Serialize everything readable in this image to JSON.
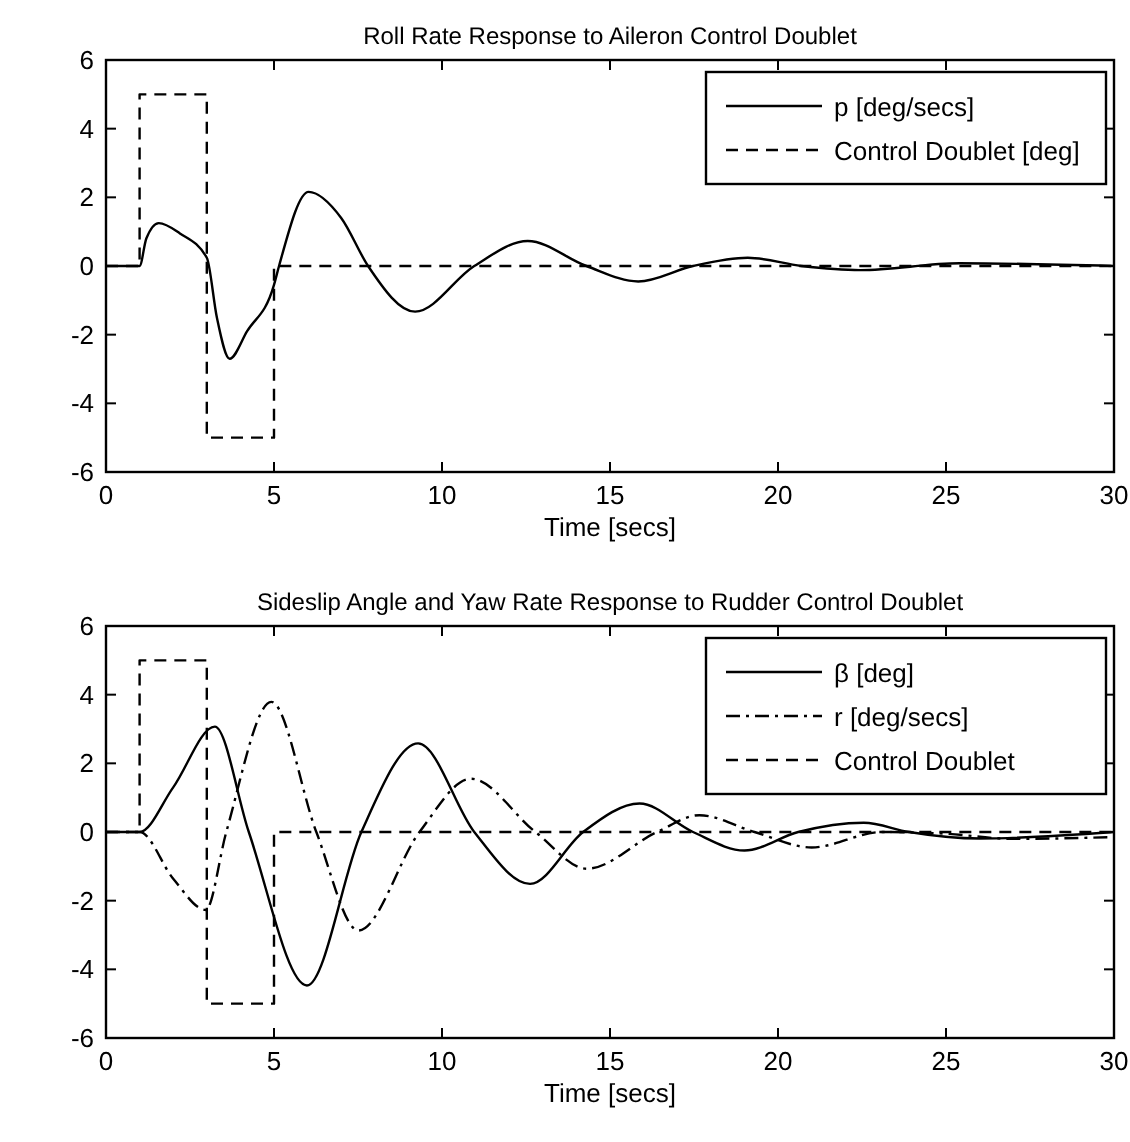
{
  "chart_data": [
    {
      "type": "line",
      "title": "Roll Rate Response to Aileron Control Doublet",
      "xlabel": "Time [secs]",
      "xlim": [
        0,
        30
      ],
      "xticks": [
        0,
        5,
        10,
        15,
        20,
        25,
        30
      ],
      "ylim": [
        -6,
        6
      ],
      "yticks": [
        -6,
        -4,
        -2,
        0,
        2,
        4,
        6
      ],
      "grid": false,
      "legend": "top right",
      "marker": "none",
      "series": [
        {
          "name": "p [deg/secs]",
          "color": "#000000",
          "line_style": "solid",
          "x": [
            0,
            1,
            1.2,
            1.57,
            2.2,
            3,
            3.3,
            3.68,
            4.2,
            5,
            5.15,
            6.03,
            7,
            7.8,
            9.2,
            10.96,
            12.55,
            14.3,
            15.84,
            17.47,
            19.1,
            20.7,
            22.45,
            25.4,
            30
          ],
          "values": [
            0,
            0,
            0.8,
            1.25,
            0.95,
            0.24,
            -1.5,
            -2.7,
            -1.9,
            -0.55,
            0,
            2.16,
            1.4,
            0,
            -1.33,
            0,
            0.73,
            0,
            -0.45,
            0,
            0.24,
            0,
            -0.12,
            0.08,
            0
          ]
        },
        {
          "name": "Control Doublet [deg]",
          "color": "#000000",
          "line_style": "dashed",
          "x": [
            0,
            1,
            1,
            3,
            3,
            5,
            5,
            30
          ],
          "values": [
            0,
            0,
            5,
            5,
            -5,
            -5,
            0,
            0
          ]
        }
      ]
    },
    {
      "type": "line",
      "title": "Sideslip Angle and Yaw Rate Response to Rudder Control Doublet",
      "xlabel": "Time [secs]",
      "xlim": [
        0,
        30
      ],
      "xticks": [
        0,
        5,
        10,
        15,
        20,
        25,
        30
      ],
      "ylim": [
        -6,
        6
      ],
      "yticks": [
        -6,
        -4,
        -2,
        0,
        2,
        4,
        6
      ],
      "grid": false,
      "legend": "top right",
      "marker": "none",
      "series": [
        {
          "name": "β [deg]",
          "color": "#000000",
          "line_style": "solid",
          "x": [
            0,
            1,
            2,
            3.24,
            4.25,
            5.98,
            7.6,
            9.29,
            10.96,
            12.62,
            14.2,
            15.88,
            17.47,
            19,
            20.6,
            22.55,
            23.9,
            26,
            30
          ],
          "values": [
            0,
            0,
            1.3,
            3.07,
            0,
            -4.47,
            0,
            2.58,
            0,
            -1.51,
            0,
            0.83,
            0,
            -0.54,
            0,
            0.27,
            0,
            -0.19,
            0
          ]
        },
        {
          "name": "r [deg/secs]",
          "color": "#000000",
          "line_style": "dashdot",
          "x": [
            0,
            1,
            2,
            2.97,
            3.58,
            4.92,
            6.26,
            7.51,
            9.33,
            10.86,
            12.78,
            14.31,
            16.4,
            17.66,
            19.3,
            21,
            23.1,
            25,
            27,
            30
          ],
          "values": [
            0,
            0,
            -1.36,
            -2.27,
            0,
            3.79,
            0,
            -2.87,
            0,
            1.55,
            0,
            -1.07,
            0,
            0.49,
            0,
            -0.45,
            0,
            -0.05,
            -0.2,
            -0.15
          ]
        },
        {
          "name": "Control Doublet",
          "color": "#000000",
          "line_style": "dashed",
          "x": [
            0,
            1,
            1,
            3,
            3,
            5,
            5,
            30
          ],
          "values": [
            0,
            0,
            5,
            5,
            -5,
            -5,
            0,
            0
          ]
        }
      ]
    }
  ]
}
